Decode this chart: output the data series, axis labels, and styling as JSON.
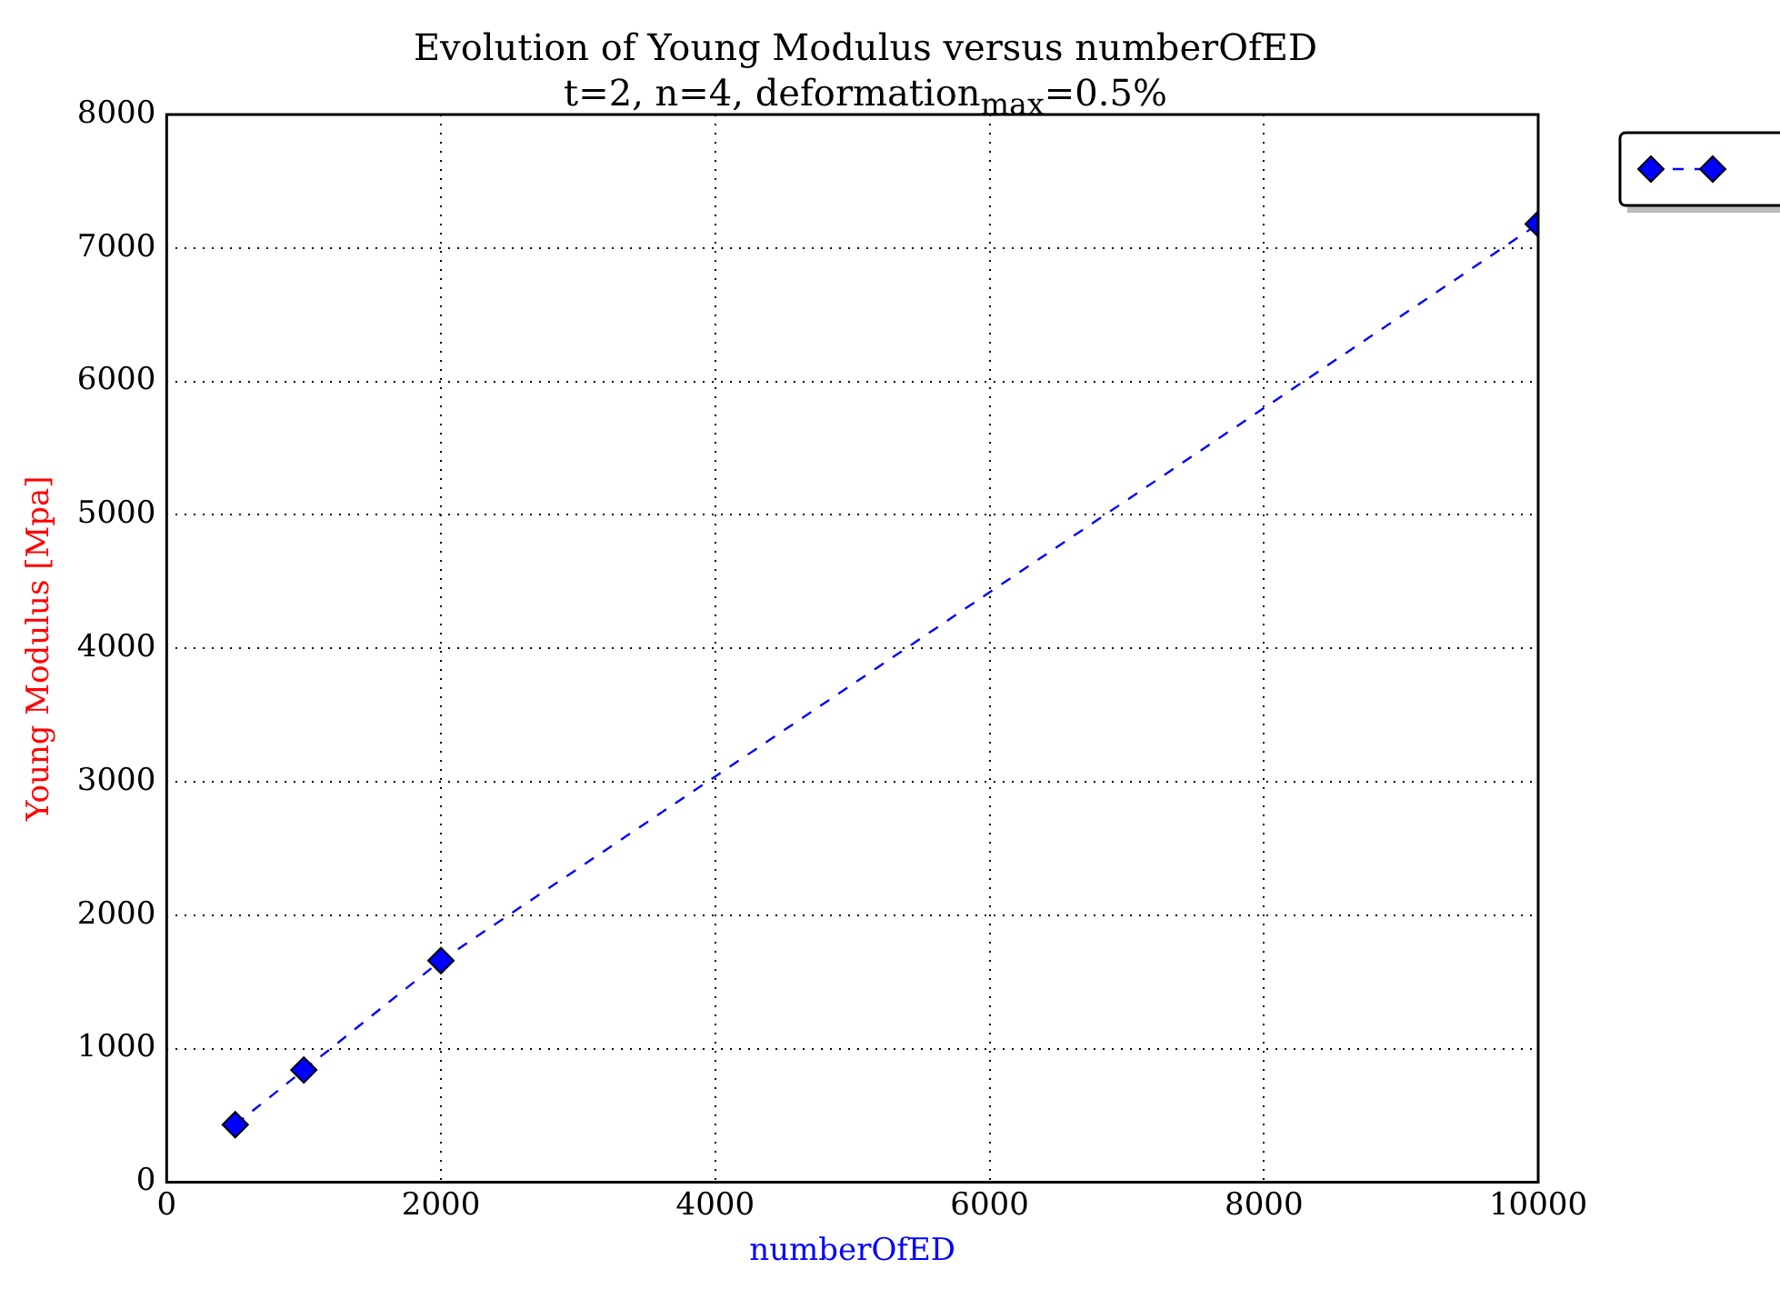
{
  "chart_data": {
    "type": "line",
    "title": "Evolution of Young Modulus versus numberOfED",
    "subtitle": "t=2, n=4, deformation$_{max}$=0.5%",
    "xlabel": "numberOfED",
    "ylabel": "Young Modulus [Mpa]",
    "x": [
      500,
      1000,
      2000,
      10000
    ],
    "series": [
      {
        "color": "#0000ff",
        "values": [
          430,
          840,
          1660,
          7180
        ]
      }
    ],
    "xlim": [
      0,
      10000
    ],
    "xticks": [
      0,
      2000,
      4000,
      6000,
      8000,
      10000
    ],
    "ylim": [
      0,
      8000
    ],
    "yticks": [
      0,
      1000,
      2000,
      3000,
      4000,
      5000,
      6000,
      7000,
      8000
    ],
    "grid": true,
    "marker": "diamond",
    "line_style": "dashed"
  }
}
